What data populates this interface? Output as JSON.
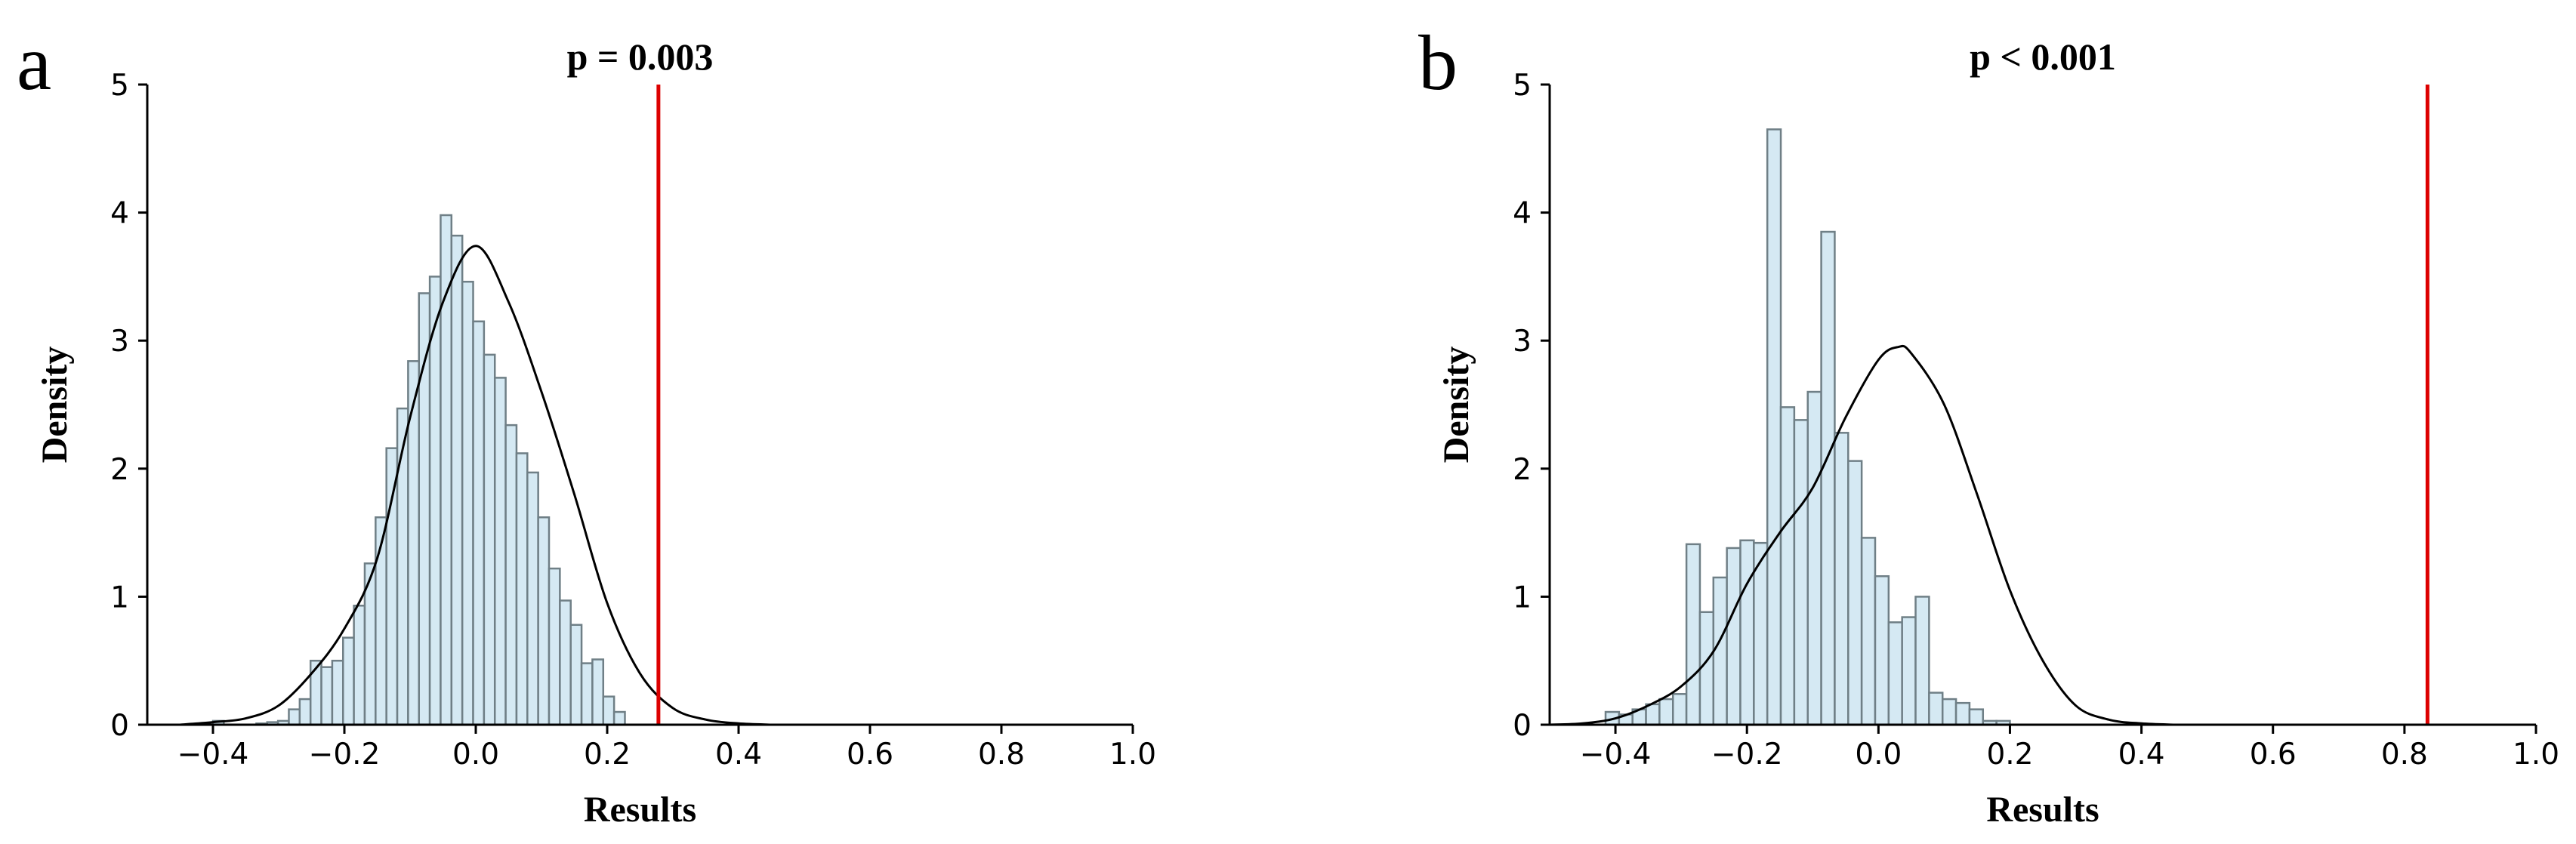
{
  "colors": {
    "bar_fill": "#d5e9f3",
    "bar_edge": "#6f7f86",
    "kde": "#000000",
    "reference_line": "#dd0000"
  },
  "chart_data": [
    {
      "panel": "a",
      "type": "bar",
      "title": "p = 0.003",
      "xlabel": "Results",
      "ylabel": "Density",
      "xlim": [
        -0.5,
        1.0
      ],
      "ylim": [
        0,
        5
      ],
      "xticks": [
        "−0.4",
        "−0.2",
        "0.0",
        "0.2",
        "0.4",
        "0.6",
        "0.8",
        "1.0"
      ],
      "xtick_values": [
        -0.4,
        -0.2,
        0.0,
        0.2,
        0.4,
        0.6,
        0.8,
        1.0
      ],
      "yticks": [
        "0",
        "1",
        "2",
        "3",
        "4",
        "5"
      ],
      "ytick_values": [
        0,
        1,
        2,
        3,
        4,
        5
      ],
      "grid": false,
      "bin_start": -0.4,
      "bin_width": 0.0165,
      "values": [
        0.03,
        0.0,
        0.0,
        0.0,
        0.01,
        0.02,
        0.03,
        0.12,
        0.2,
        0.5,
        0.45,
        0.5,
        0.68,
        0.93,
        1.26,
        1.62,
        2.16,
        2.47,
        2.84,
        3.37,
        3.5,
        3.98,
        3.82,
        3.46,
        3.15,
        2.89,
        2.71,
        2.34,
        2.12,
        1.97,
        1.62,
        1.22,
        0.97,
        0.78,
        0.48,
        0.51,
        0.22,
        0.1
      ],
      "kde": {
        "x": [
          -0.45,
          -0.4,
          -0.35,
          -0.3,
          -0.25,
          -0.2,
          -0.15,
          -0.1,
          -0.05,
          0.0,
          0.05,
          0.1,
          0.15,
          0.2,
          0.25,
          0.3,
          0.35,
          0.4,
          0.45
        ],
        "y": [
          0.0,
          0.02,
          0.05,
          0.15,
          0.4,
          0.75,
          1.3,
          2.4,
          3.3,
          3.74,
          3.3,
          2.6,
          1.8,
          0.95,
          0.4,
          0.13,
          0.04,
          0.01,
          0.0
        ]
      },
      "reference_line": {
        "x": 0.278
      }
    },
    {
      "panel": "b",
      "type": "bar",
      "title": "p < 0.001",
      "xlabel": "Results",
      "ylabel": "Density",
      "xlim": [
        -0.5,
        1.0
      ],
      "ylim": [
        0,
        5
      ],
      "xticks": [
        "−0.4",
        "−0.2",
        "0.0",
        "0.2",
        "0.4",
        "0.6",
        "0.8",
        "1.0"
      ],
      "xtick_values": [
        -0.4,
        -0.2,
        0.0,
        0.2,
        0.4,
        0.6,
        0.8,
        1.0
      ],
      "yticks": [
        "0",
        "1",
        "2",
        "3",
        "4",
        "5"
      ],
      "ytick_values": [
        0,
        1,
        2,
        3,
        4,
        5
      ],
      "grid": false,
      "bin_start": -0.415,
      "bin_width": 0.0205,
      "values": [
        0.1,
        0.08,
        0.12,
        0.16,
        0.2,
        0.24,
        1.41,
        0.88,
        1.15,
        1.38,
        1.44,
        1.42,
        4.65,
        2.48,
        2.38,
        2.6,
        3.85,
        2.28,
        2.06,
        1.46,
        1.16,
        0.8,
        0.84,
        1.0,
        0.25,
        0.2,
        0.17,
        0.12,
        0.03,
        0.03
      ],
      "kde": {
        "x": [
          -0.5,
          -0.45,
          -0.4,
          -0.35,
          -0.3,
          -0.25,
          -0.2,
          -0.15,
          -0.1,
          -0.05,
          0.0,
          0.03,
          0.05,
          0.1,
          0.15,
          0.2,
          0.25,
          0.3,
          0.35,
          0.4,
          0.45
        ],
        "y": [
          0.0,
          0.01,
          0.05,
          0.15,
          0.3,
          0.58,
          1.1,
          1.5,
          1.85,
          2.4,
          2.85,
          2.95,
          2.9,
          2.5,
          1.8,
          1.05,
          0.5,
          0.15,
          0.04,
          0.01,
          0.0
        ]
      },
      "reference_line": {
        "x": 0.835
      }
    }
  ]
}
